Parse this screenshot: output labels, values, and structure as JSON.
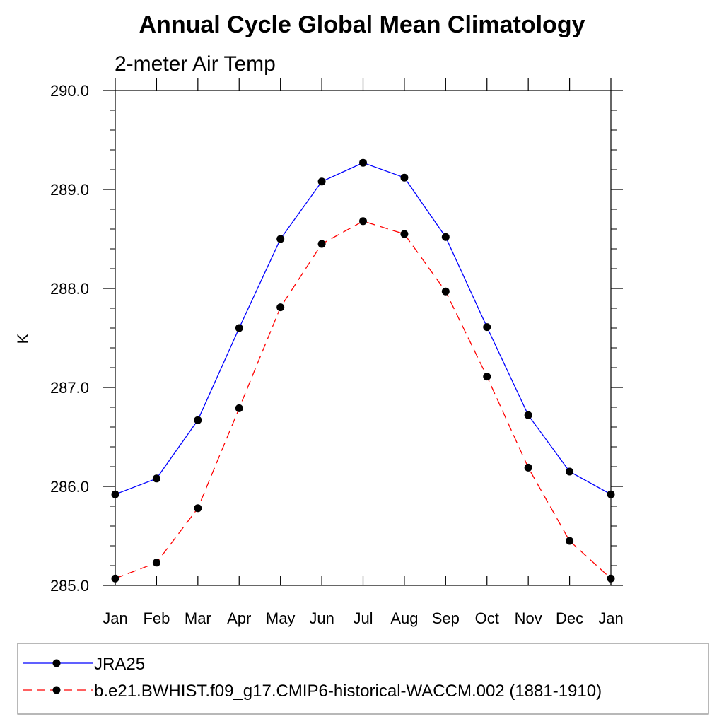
{
  "chart_data": {
    "type": "line",
    "title": "Annual Cycle Global Mean Climatology",
    "subtitle": "2-meter Air Temp",
    "xlabel": "",
    "ylabel": "K",
    "categories": [
      "Jan",
      "Feb",
      "Mar",
      "Apr",
      "May",
      "Jun",
      "Jul",
      "Aug",
      "Sep",
      "Oct",
      "Nov",
      "Dec",
      "Jan"
    ],
    "ylim": [
      285.0,
      290.0
    ],
    "yticks": [
      "285.0",
      "286.0",
      "287.0",
      "288.0",
      "289.0",
      "290.0"
    ],
    "grid": false,
    "legend_position": "bottom",
    "series": [
      {
        "name": "JRA25",
        "color": "#0000ff",
        "line_style": "solid",
        "marker": "filled-circle",
        "values": [
          285.92,
          286.08,
          286.67,
          287.6,
          288.5,
          289.08,
          289.27,
          289.12,
          288.52,
          287.61,
          286.72,
          286.15,
          285.92
        ]
      },
      {
        "name": "b.e21.BWHIST.f09_g17.CMIP6-historical-WACCM.002 (1881-1910)",
        "color": "#ff0000",
        "line_style": "dashed",
        "marker": "filled-circle",
        "values": [
          285.07,
          285.23,
          285.78,
          286.79,
          287.81,
          288.45,
          288.68,
          288.55,
          287.97,
          287.11,
          286.19,
          285.45,
          285.07
        ]
      }
    ]
  }
}
